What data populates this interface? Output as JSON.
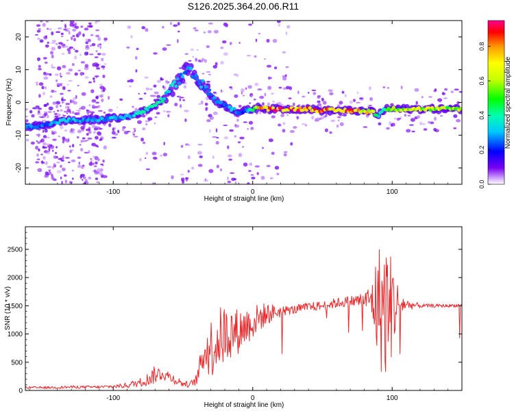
{
  "page": {
    "title": "S126.2025.364.20.06.R11"
  },
  "chart_data": [
    {
      "type": "heatmap",
      "title": "S126.2025.364.20.06.R11",
      "xlabel": "Height of straight line (km)",
      "ylabel": "Frequency (Hz)",
      "xlim": [
        -163,
        150
      ],
      "ylim": [
        -25,
        25
      ],
      "xticks": [
        -100,
        0,
        100
      ],
      "yticks": [
        -20,
        -10,
        0,
        10,
        20
      ],
      "colorbar": {
        "label": "Normalized spectral amplitude",
        "range": [
          0,
          0.95
        ],
        "ticks": [
          "0.0",
          "0.2",
          "0.4",
          "0.6",
          "0.8"
        ],
        "tick_values": [
          0.0,
          0.2,
          0.4,
          0.6,
          0.8
        ]
      },
      "ridge": {
        "x": [
          -163,
          -150,
          -135,
          -120,
          -105,
          -90,
          -80,
          -70,
          -60,
          -52,
          -46,
          -40,
          -35,
          -30,
          -25,
          -20,
          -15,
          -10,
          -5,
          0,
          5,
          10,
          20,
          30,
          40,
          50,
          60,
          70,
          75,
          80,
          85,
          90,
          95,
          100,
          110,
          120,
          130,
          148
        ],
        "frequency_hz": [
          -7.5,
          -7,
          -5.5,
          -5.5,
          -5,
          -4.5,
          -3,
          -1,
          3,
          7,
          11,
          7,
          5,
          2,
          0,
          -1,
          -2,
          -3,
          -2.5,
          -2,
          -1.5,
          -2,
          -2,
          -2,
          -2,
          -2.5,
          -2.5,
          -2.5,
          -2.5,
          -3,
          -2.5,
          -4,
          -2,
          -2,
          -2,
          -2,
          -2,
          -2
        ],
        "amplitude": [
          0.35,
          0.3,
          0.4,
          0.3,
          0.35,
          0.35,
          0.45,
          0.5,
          0.4,
          0.35,
          0.3,
          0.35,
          0.3,
          0.35,
          0.3,
          0.3,
          0.4,
          0.3,
          0.25,
          0.6,
          0.85,
          0.95,
          0.95,
          0.95,
          0.95,
          0.9,
          0.9,
          0.95,
          0.9,
          0.8,
          0.85,
          0.4,
          0.6,
          0.65,
          0.7,
          0.7,
          0.7,
          0.7
        ]
      }
    },
    {
      "type": "line",
      "xlabel": "Height of straight line (km)",
      "ylabel": "SNR (10 * v/v)",
      "xlim": [
        -163,
        150
      ],
      "ylim": [
        0,
        2900
      ],
      "xticks": [
        -100,
        0,
        100
      ],
      "yticks": [
        0,
        500,
        1000,
        1500,
        2000,
        2500
      ],
      "series": [
        {
          "name": "SNR",
          "color": "#e8282b",
          "x": [
            -163,
            -150,
            -130,
            -110,
            -100,
            -90,
            -80,
            -75,
            -70,
            -65,
            -60,
            -55,
            -50,
            -45,
            -40,
            -35,
            -30,
            -25,
            -20,
            -15,
            -10,
            -5,
            0,
            5,
            10,
            15,
            20,
            25,
            30,
            40,
            50,
            60,
            70,
            80,
            85,
            90,
            95,
            100,
            105,
            110,
            120,
            130,
            140,
            150
          ],
          "y": [
            50,
            50,
            60,
            60,
            70,
            90,
            150,
            200,
            280,
            300,
            250,
            180,
            120,
            100,
            200,
            700,
            750,
            900,
            1000,
            1050,
            1050,
            1150,
            1200,
            1300,
            1350,
            1380,
            1400,
            1420,
            1430,
            1480,
            1500,
            1550,
            1580,
            1600,
            1600,
            1500,
            1450,
            1500,
            1550,
            1520,
            1500,
            1500,
            1500,
            1510
          ],
          "jitter_envelope": [
            20,
            20,
            25,
            25,
            30,
            50,
            80,
            120,
            160,
            120,
            100,
            80,
            60,
            50,
            100,
            350,
            550,
            550,
            550,
            450,
            400,
            350,
            300,
            250,
            200,
            150,
            100,
            80,
            80,
            80,
            80,
            90,
            100,
            150,
            300,
            1100,
            1300,
            900,
            250,
            100,
            40,
            30,
            30,
            30
          ]
        }
      ]
    }
  ]
}
